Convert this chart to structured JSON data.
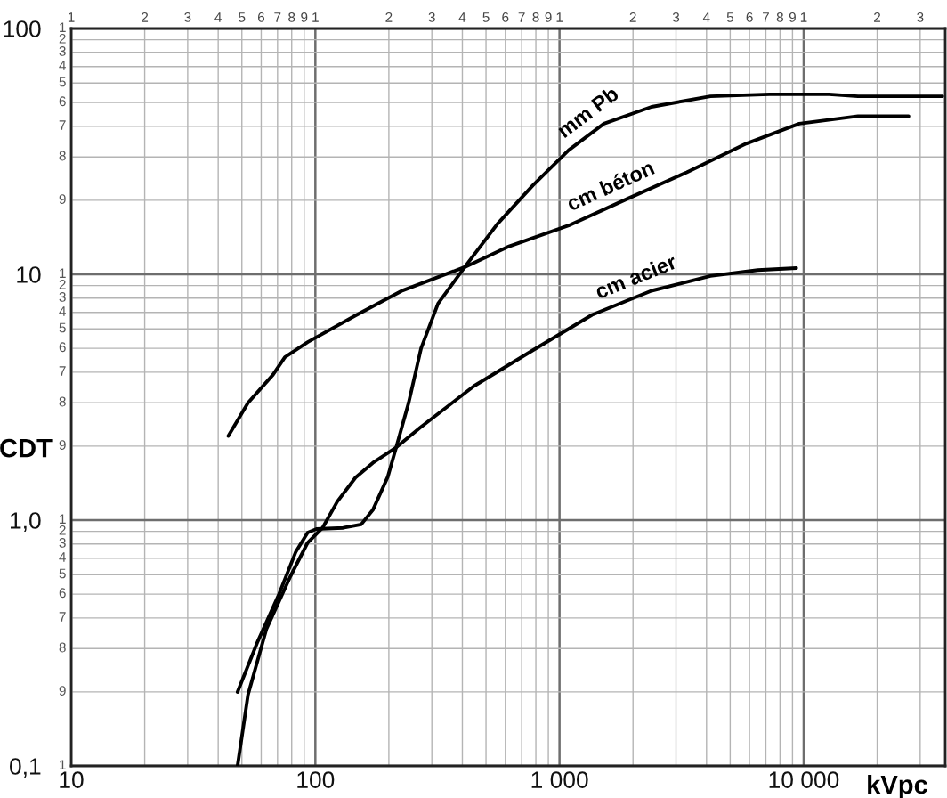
{
  "chart_data": {
    "type": "line",
    "xlabel": "kVpc",
    "ylabel": "CDT",
    "log": "xy",
    "grid": true,
    "xlim": [
      10,
      38000
    ],
    "ylim": [
      0.1,
      100
    ],
    "xticks": [
      10,
      100,
      {
        "value": 1000,
        "label": "1 000"
      },
      {
        "value": 10000,
        "label": "10 000"
      }
    ],
    "yticks": [
      {
        "value": 0.1,
        "label": "0,1"
      },
      {
        "value": 1,
        "label": "1,0"
      },
      10,
      100
    ],
    "annotations": [
      "1",
      "2",
      "3",
      "4",
      "5",
      "6",
      "7",
      "8",
      "9",
      "1",
      "2",
      "3",
      "4",
      "5",
      "6",
      "7",
      "8",
      "9",
      "1",
      "2",
      "3",
      "4",
      "5",
      "6",
      "7",
      "8",
      "9",
      "1",
      "2",
      "3",
      "1",
      "2",
      "3",
      "4",
      "5",
      "6",
      "7",
      "8",
      "9",
      "1",
      "2",
      "3",
      "4",
      "5",
      "6",
      "7",
      "8",
      "9",
      "1",
      "2",
      "3",
      "4",
      "5",
      "6",
      "7",
      "8",
      "9",
      "1"
    ],
    "series": [
      {
        "name": "mm Pb",
        "color": "#000000",
        "x": [
          48,
          58,
          71,
          83,
          93,
          101,
          130,
          154,
          172,
          198,
          215,
          241,
          271,
          318,
          409,
          556,
          778,
          1090,
          1520,
          2380,
          4150,
          7240,
          12700,
          16700,
          37000
        ],
        "values": [
          0.2,
          0.32,
          0.5,
          0.74,
          0.89,
          0.92,
          0.93,
          0.96,
          1.1,
          1.5,
          2.0,
          3.0,
          5.0,
          7.6,
          10.7,
          16,
          23,
          32,
          41,
          48,
          53,
          54,
          54,
          53,
          53
        ]
      },
      {
        "name": "cm béton",
        "color": "#000000",
        "x": [
          44,
          53,
          67,
          75,
          93,
          146,
          228,
          409,
          622,
          1090,
          1900,
          3320,
          5810,
          9590,
          16700,
          26900
        ],
        "values": [
          2.2,
          3.0,
          3.9,
          4.6,
          5.3,
          6.8,
          8.6,
          10.7,
          13,
          15.8,
          20.3,
          26,
          34,
          41,
          44,
          44
        ]
      },
      {
        "name": "cm acier",
        "color": "#000000",
        "x": [
          48,
          53,
          63,
          79,
          93,
          107,
          123,
          146,
          172,
          215,
          269,
          446,
          778,
          1360,
          2380,
          4150,
          6490,
          9330
        ],
        "values": [
          0.1,
          0.195,
          0.36,
          0.59,
          0.81,
          0.93,
          1.19,
          1.49,
          1.71,
          1.98,
          2.38,
          3.51,
          4.91,
          6.84,
          8.57,
          9.84,
          10.4,
          10.6
        ]
      }
    ]
  }
}
